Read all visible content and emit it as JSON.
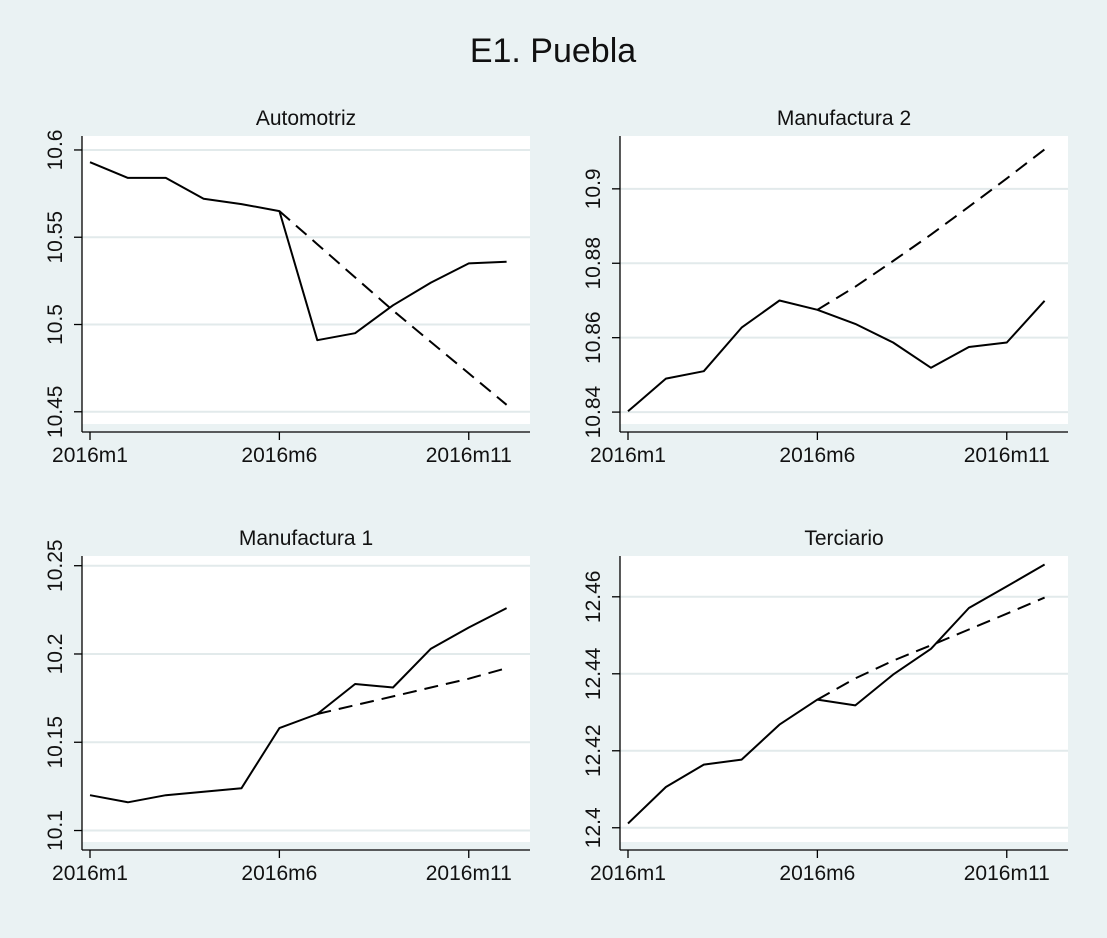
{
  "figure": {
    "title": "E1. Puebla",
    "background": "#eaf2f3",
    "plot_background": "#ffffff",
    "grid_color": "#e2eaeb",
    "line_color": "#000000"
  },
  "chart_data": [
    {
      "type": "line",
      "title": "Automotriz",
      "xlabel": "",
      "ylabel": "",
      "x": [
        1,
        2,
        3,
        4,
        5,
        6,
        7,
        8,
        9,
        10,
        11,
        12
      ],
      "xlim": [
        1,
        12.3
      ],
      "xticks": [
        1,
        6,
        11
      ],
      "xtick_labels": [
        "2016m1",
        "2016m6",
        "2016m11"
      ],
      "ylim": [
        10.443,
        10.608
      ],
      "yticks": [
        10.45,
        10.5,
        10.55,
        10.6
      ],
      "ytick_labels": [
        "10.45",
        "10.5",
        "10.55",
        "10.6"
      ],
      "grid": true,
      "series": [
        {
          "style": "solid",
          "x": [
            1,
            2,
            3,
            4,
            5,
            6,
            7,
            8,
            9,
            10,
            11,
            12
          ],
          "values": [
            10.593,
            10.584,
            10.584,
            10.572,
            10.569,
            10.565,
            10.491,
            10.495,
            10.511,
            10.524,
            10.535,
            10.536
          ]
        },
        {
          "style": "dashed",
          "x": [
            6,
            7,
            8,
            9,
            10,
            11,
            12
          ],
          "values": [
            10.565,
            10.546,
            10.527,
            10.508,
            10.49,
            10.472,
            10.454
          ]
        }
      ]
    },
    {
      "type": "line",
      "title": "Manufactura 2",
      "xlabel": "",
      "ylabel": "",
      "x": [
        1,
        2,
        3,
        4,
        5,
        6,
        7,
        8,
        9,
        10,
        11,
        12
      ],
      "xlim": [
        1,
        12.3
      ],
      "xticks": [
        1,
        6,
        11
      ],
      "xtick_labels": [
        "2016m1",
        "2016m6",
        "2016m11"
      ],
      "ylim": [
        10.8368,
        10.9142
      ],
      "yticks": [
        10.84,
        10.86,
        10.88,
        10.9
      ],
      "ytick_labels": [
        "10.84",
        "10.86",
        "10.88",
        "10.9"
      ],
      "grid": true,
      "series": [
        {
          "style": "solid",
          "x": [
            1,
            2,
            3,
            4,
            5,
            6,
            7,
            8,
            9,
            10,
            11,
            12
          ],
          "values": [
            10.8402,
            10.849,
            10.851,
            10.8627,
            10.87,
            10.8675,
            10.8637,
            10.8587,
            10.8519,
            10.8575,
            10.8587,
            10.8699
          ]
        },
        {
          "style": "dashed",
          "x": [
            6,
            7,
            8,
            9,
            10,
            11,
            12
          ],
          "values": [
            10.8675,
            10.8737,
            10.8806,
            10.8877,
            10.8952,
            10.9028,
            10.9106
          ]
        }
      ]
    },
    {
      "type": "line",
      "title": "Manufactura 1",
      "xlabel": "",
      "ylabel": "",
      "x": [
        1,
        2,
        3,
        4,
        5,
        6,
        7,
        8,
        9,
        10,
        11,
        12
      ],
      "xlim": [
        1,
        12.3
      ],
      "xticks": [
        1,
        6,
        11
      ],
      "xtick_labels": [
        "2016m1",
        "2016m6",
        "2016m11"
      ],
      "ylim": [
        10.0935,
        10.2555
      ],
      "yticks": [
        10.1,
        10.15,
        10.2,
        10.25
      ],
      "ytick_labels": [
        "10.1",
        "10.15",
        "10.2",
        "10.25"
      ],
      "grid": true,
      "series": [
        {
          "style": "solid",
          "x": [
            1,
            2,
            3,
            4,
            5,
            6,
            7,
            8,
            9,
            10,
            11,
            12
          ],
          "values": [
            10.12,
            10.116,
            10.12,
            10.122,
            10.124,
            10.158,
            10.166,
            10.183,
            10.181,
            10.203,
            10.215,
            10.226
          ]
        },
        {
          "style": "dashed",
          "x": [
            7,
            8,
            9,
            10,
            11,
            12
          ],
          "values": [
            10.166,
            10.171,
            10.176,
            10.181,
            10.186,
            10.192
          ]
        }
      ]
    },
    {
      "type": "line",
      "title": "Terciario",
      "xlabel": "",
      "ylabel": "",
      "x": [
        1,
        2,
        3,
        4,
        5,
        6,
        7,
        8,
        9,
        10,
        11,
        12
      ],
      "xlim": [
        1,
        12.3
      ],
      "xticks": [
        1,
        6,
        11
      ],
      "xtick_labels": [
        "2016m1",
        "2016m6",
        "2016m11"
      ],
      "ylim": [
        12.3963,
        12.4706
      ],
      "yticks": [
        12.4,
        12.42,
        12.44,
        12.46
      ],
      "ytick_labels": [
        "12.4",
        "12.42",
        "12.44",
        "12.46"
      ],
      "grid": true,
      "series": [
        {
          "style": "solid",
          "x": [
            1,
            2,
            3,
            4,
            5,
            6,
            7,
            8,
            9,
            10,
            11,
            12
          ],
          "values": [
            12.4011,
            12.4106,
            12.4164,
            12.4177,
            12.4268,
            12.4333,
            12.4318,
            12.4398,
            12.4465,
            12.4571,
            12.4627,
            12.4684
          ]
        },
        {
          "style": "dashed",
          "x": [
            6,
            7,
            8,
            9,
            10,
            11,
            12
          ],
          "values": [
            12.4333,
            12.4388,
            12.4434,
            12.4474,
            12.4515,
            12.4556,
            12.4598
          ]
        }
      ]
    }
  ]
}
